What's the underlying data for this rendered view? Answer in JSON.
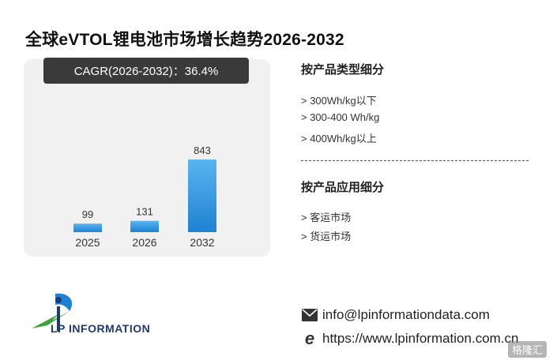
{
  "title": "全球eVTOL锂电池市场增长趋势2026-2032",
  "cagr_label": "CAGR(2026-2032)：36.4%",
  "chart_data": {
    "type": "bar",
    "categories": [
      "2025",
      "2026",
      "2032"
    ],
    "values": [
      99,
      131,
      843
    ],
    "ylim": [
      0,
      843
    ],
    "bar_color_top": "#5ab4f0",
    "bar_color_bottom": "#1e82d2",
    "grid": false,
    "title": "",
    "xlabel": "",
    "ylabel": ""
  },
  "segments": {
    "by_type": {
      "heading": "按产品类型细分",
      "items": [
        "> 300Wh/kg以下",
        "> 300-400 Wh/kg",
        "> 400Wh/kg以上"
      ]
    },
    "by_application": {
      "heading": "按产品应用细分",
      "items": [
        "> 客运市场",
        "> 货运市场"
      ]
    }
  },
  "brand": {
    "name": "LP INFORMATION",
    "colors": {
      "navy": "#1e3a6e",
      "green": "#3aa536",
      "blue": "#1e82d2"
    }
  },
  "contact": {
    "email": "info@lpinformationdata.com",
    "website": "https://www.lpinformation.com.cn",
    "email_icon": "envelope-icon",
    "web_icon": "browser-e-icon"
  },
  "watermark": "格隆汇"
}
